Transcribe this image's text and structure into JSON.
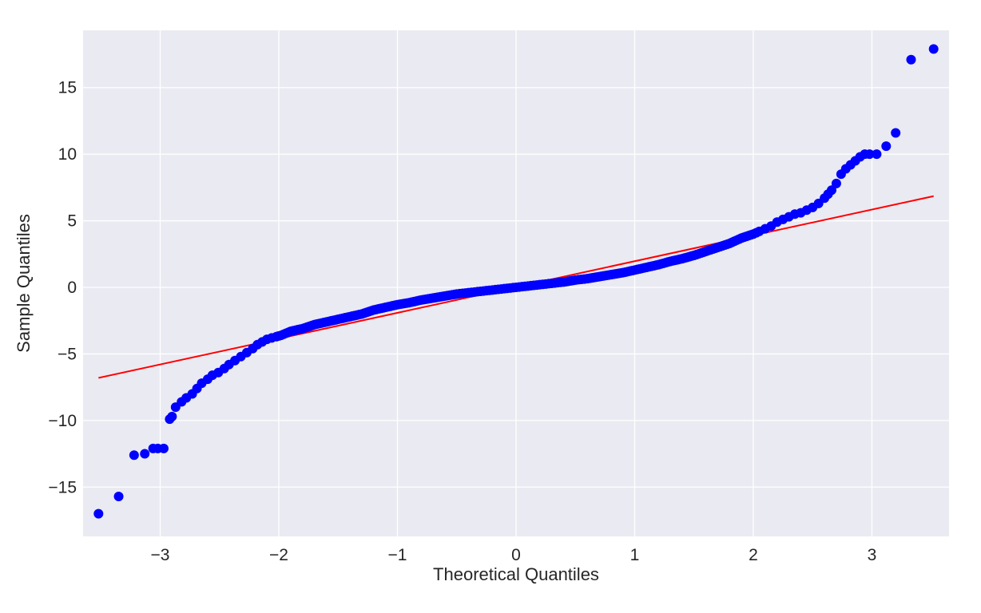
{
  "chart_data": {
    "type": "scatter",
    "title": "",
    "xlabel": "Theoretical Quantiles",
    "ylabel": "Sample Quantiles",
    "xlim": [
      -3.65,
      3.65
    ],
    "ylim": [
      -18.7,
      19.3
    ],
    "x_ticks": [
      -3,
      -2,
      -1,
      0,
      1,
      2,
      3
    ],
    "x_tick_labels": [
      "−3",
      "−2",
      "−1",
      "0",
      "1",
      "2",
      "3"
    ],
    "y_ticks": [
      -15,
      -10,
      -5,
      0,
      5,
      10,
      15
    ],
    "y_tick_labels": [
      "−15",
      "−10",
      "−5",
      "0",
      "5",
      "10",
      "15"
    ],
    "grid": true,
    "colors": {
      "plot_background": "#eaeaf2",
      "grid": "#ffffff",
      "points": "#0000ff",
      "reference_line": "#ff0000",
      "text": "#262626"
    },
    "series": [
      {
        "kind": "points",
        "x": [
          -3.52,
          -3.35,
          -3.22,
          -3.13,
          -3.06,
          -3.02,
          -2.97,
          -2.92,
          -2.9,
          -2.87,
          -2.82,
          -2.78,
          -2.73,
          -2.69,
          -2.65,
          -2.6,
          -2.56,
          -2.51,
          -2.46,
          -2.42,
          -2.37,
          -2.32,
          -2.27,
          -2.22,
          -2.18,
          -2.14,
          -2.1,
          -2.06,
          -2.02,
          -1.98,
          -1.9,
          -1.8,
          -1.7,
          -1.6,
          -1.5,
          -1.4,
          -1.3,
          -1.2,
          -1.1,
          -1.0,
          -0.9,
          -0.8,
          -0.7,
          -0.6,
          -0.5,
          -0.4,
          -0.3,
          -0.2,
          -0.1,
          0.0,
          0.1,
          0.2,
          0.3,
          0.4,
          0.5,
          0.6,
          0.7,
          0.8,
          0.9,
          1.0,
          1.1,
          1.2,
          1.3,
          1.4,
          1.5,
          1.6,
          1.7,
          1.8,
          1.9,
          2.0,
          2.05,
          2.1,
          2.15,
          2.2,
          2.25,
          2.3,
          2.35,
          2.4,
          2.45,
          2.5,
          2.55,
          2.6,
          2.63,
          2.66,
          2.7,
          2.74,
          2.78,
          2.82,
          2.86,
          2.9,
          2.94,
          2.98,
          3.04,
          3.12,
          3.2,
          3.33,
          3.52
        ],
        "y": [
          -17.0,
          -15.7,
          -12.6,
          -12.5,
          -12.1,
          -12.1,
          -12.1,
          -9.9,
          -9.7,
          -9.0,
          -8.6,
          -8.3,
          -8.0,
          -7.6,
          -7.2,
          -6.9,
          -6.6,
          -6.4,
          -6.1,
          -5.8,
          -5.5,
          -5.2,
          -4.9,
          -4.6,
          -4.3,
          -4.1,
          -3.9,
          -3.8,
          -3.7,
          -3.6,
          -3.3,
          -3.1,
          -2.8,
          -2.6,
          -2.4,
          -2.2,
          -2.0,
          -1.7,
          -1.5,
          -1.3,
          -1.15,
          -0.95,
          -0.8,
          -0.65,
          -0.5,
          -0.4,
          -0.3,
          -0.2,
          -0.1,
          0.0,
          0.1,
          0.2,
          0.3,
          0.4,
          0.55,
          0.65,
          0.8,
          0.95,
          1.1,
          1.3,
          1.5,
          1.7,
          1.95,
          2.15,
          2.4,
          2.7,
          3.0,
          3.3,
          3.7,
          4.0,
          4.2,
          4.4,
          4.6,
          4.9,
          5.1,
          5.3,
          5.5,
          5.6,
          5.8,
          6.0,
          6.3,
          6.7,
          7.0,
          7.3,
          7.8,
          8.5,
          8.9,
          9.2,
          9.5,
          9.8,
          10.0,
          10.0,
          10.0,
          10.6,
          11.6,
          17.1,
          17.9
        ]
      },
      {
        "kind": "line",
        "x": [
          -3.52,
          3.52
        ],
        "y": [
          -6.8,
          6.85
        ]
      }
    ]
  }
}
